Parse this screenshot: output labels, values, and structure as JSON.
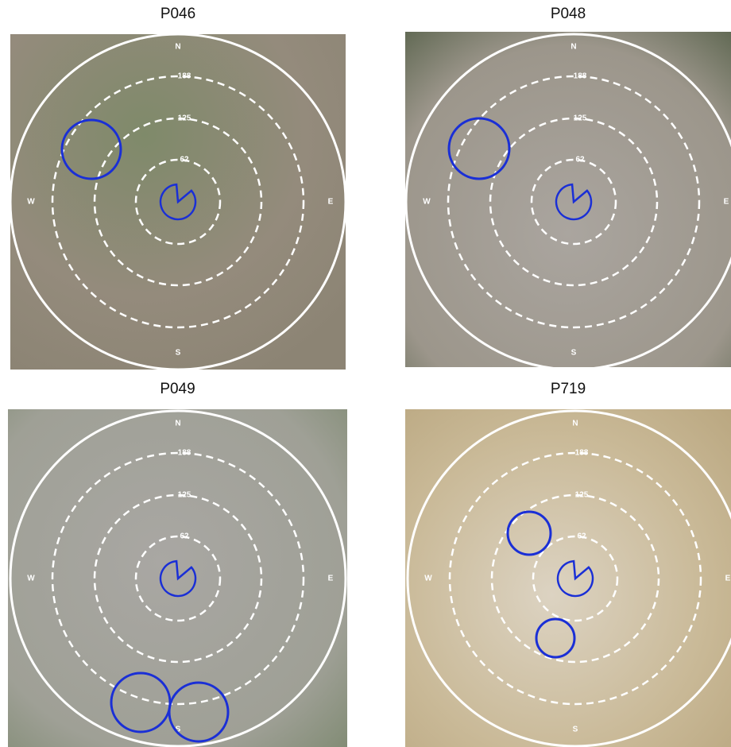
{
  "panels": [
    {
      "title": "P046",
      "compass": {
        "n": "N",
        "e": "E",
        "s": "S",
        "w": "W"
      },
      "rings": [
        "62",
        "125",
        "188"
      ]
    },
    {
      "title": "P048",
      "compass": {
        "n": "N",
        "e": "E",
        "s": "S",
        "w": "W"
      },
      "rings": [
        "62",
        "125",
        "188"
      ]
    },
    {
      "title": "P049",
      "compass": {
        "n": "N",
        "e": "E",
        "s": "S",
        "w": "W"
      },
      "rings": [
        "62",
        "125",
        "188"
      ]
    },
    {
      "title": "P719",
      "compass": {
        "n": "N",
        "e": "E",
        "s": "S",
        "w": "W"
      },
      "rings": [
        "62",
        "125",
        "188"
      ]
    }
  ]
}
